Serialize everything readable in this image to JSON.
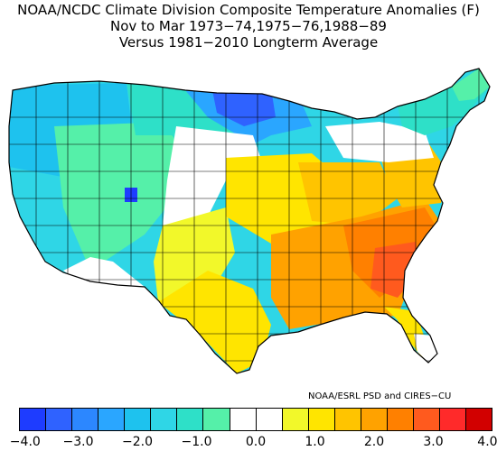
{
  "title": {
    "line1": "NOAA/NCDC Climate Division Composite Temperature Anomalies (F)",
    "line2": "Nov to Mar  1973−74,1975−76,1988−89",
    "line3": "Versus 1981−2010 Longterm Average"
  },
  "credit": "NOAA/ESRL PSD and CIRES−CU",
  "colorbar": {
    "colors": [
      "#1e3cff",
      "#2f62ff",
      "#2c87ff",
      "#2aa6ff",
      "#1ec2ee",
      "#2fd6e6",
      "#2ee0c8",
      "#55f0a9",
      "#ffffff",
      "#ffffff",
      "#f2f82a",
      "#ffe500",
      "#ffc400",
      "#ffa200",
      "#ff8000",
      "#ff5a1e",
      "#ff2a2a",
      "#d20000"
    ],
    "tick_labels": [
      "−4.0",
      "−3.0",
      "−2.0",
      "−1.0",
      "0.0",
      "1.0",
      "2.0",
      "3.0",
      "4.0"
    ]
  },
  "map_regions": {
    "west_coast": "#2fd6e6",
    "pacific_nw": "#1ec2ee",
    "great_basin": "#55f0a9",
    "southwest_ca": "#ffffff",
    "northern_plains": "#2ee0c8",
    "upper_midwest": "#2aa6ff",
    "minnesota_core": "#2f62ff",
    "colorado_pocket": "#1e3cff",
    "central_plains": "#ffffff",
    "southern_plains": "#f2f82a",
    "texas": "#ffe500",
    "midwest": "#ffe500",
    "ohio_valley": "#ffc400",
    "southeast": "#ffa200",
    "carolinas": "#ff8000",
    "georgia_hot": "#ff5a1e",
    "florida": "#ffe500",
    "florida_south": "#ffffff",
    "mid_atlantic": "#ffc400",
    "new_england": "#2ee0c8",
    "northeast_mix": "#ffffff",
    "maine_north": "#55f0a9"
  }
}
